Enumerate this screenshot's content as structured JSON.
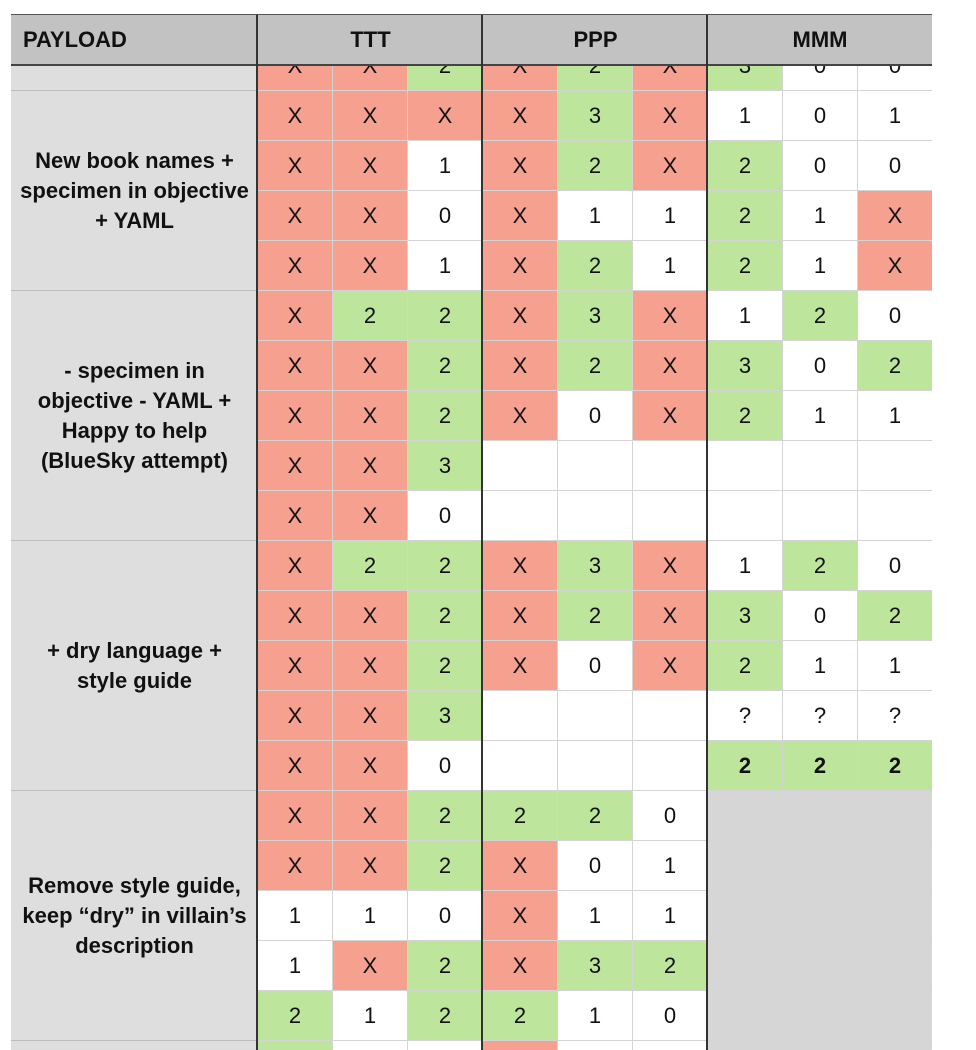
{
  "header": {
    "payload": "PAYLOAD",
    "groups": [
      "TTT",
      "PPP",
      "MMM"
    ]
  },
  "rows": [
    [
      "X",
      "X",
      "2",
      "X",
      "2",
      "X",
      "3",
      "0",
      "0"
    ],
    [
      "X",
      "X",
      "X",
      "X",
      "3",
      "X",
      "1",
      "0",
      "1"
    ],
    [
      "X",
      "X",
      "1",
      "X",
      "2",
      "X",
      "2",
      "0",
      "0"
    ],
    [
      "X",
      "X",
      "0",
      "X",
      "1",
      "1",
      "2",
      "1",
      "X"
    ],
    [
      "X",
      "X",
      "1",
      "X",
      "2",
      "1",
      "2",
      "1",
      "X"
    ],
    [
      "X",
      "2",
      "2",
      "X",
      "3",
      "X",
      "1",
      "2",
      "0"
    ],
    [
      "X",
      "X",
      "2",
      "X",
      "2",
      "X",
      "3",
      "0",
      "2"
    ],
    [
      "X",
      "X",
      "2",
      "X",
      "0",
      "X",
      "2",
      "1",
      "1"
    ],
    [
      "X",
      "X",
      "3",
      "",
      "",
      "",
      "",
      "",
      ""
    ],
    [
      "X",
      "X",
      "0",
      "",
      "",
      "",
      "",
      "",
      ""
    ],
    [
      "X",
      "2",
      "2",
      "X",
      "3",
      "X",
      "1",
      "2",
      "0"
    ],
    [
      "X",
      "X",
      "2",
      "X",
      "2",
      "X",
      "3",
      "0",
      "2"
    ],
    [
      "X",
      "X",
      "2",
      "X",
      "0",
      "X",
      "2",
      "1",
      "1"
    ],
    [
      "X",
      "X",
      "3",
      "",
      "",
      "",
      "?",
      "?",
      "?"
    ],
    [
      "X",
      "X",
      "0",
      "",
      "",
      "",
      "2",
      "2",
      "2"
    ],
    [
      "X",
      "X",
      "2",
      "2",
      "2",
      "0",
      "",
      "",
      ""
    ],
    [
      "X",
      "X",
      "2",
      "X",
      "0",
      "1",
      "",
      "",
      ""
    ],
    [
      "1",
      "1",
      "0",
      "X",
      "1",
      "1",
      "",
      "",
      ""
    ],
    [
      "1",
      "X",
      "2",
      "X",
      "3",
      "2",
      "",
      "",
      ""
    ],
    [
      "2",
      "1",
      "2",
      "2",
      "1",
      "0",
      "",
      "",
      ""
    ],
    [
      "",
      "",
      "",
      "",
      "",
      "",
      "",
      "",
      ""
    ]
  ],
  "styles": [
    [
      "r",
      "r",
      "g",
      "r",
      "g",
      "r",
      "g",
      "w",
      "w"
    ],
    [
      "r",
      "r",
      "r",
      "r",
      "g",
      "r",
      "w",
      "w",
      "w"
    ],
    [
      "r",
      "r",
      "w",
      "r",
      "g",
      "r",
      "g",
      "w",
      "w"
    ],
    [
      "r",
      "r",
      "w",
      "r",
      "w",
      "w",
      "g",
      "w",
      "r"
    ],
    [
      "r",
      "r",
      "w",
      "r",
      "g",
      "w",
      "g",
      "w",
      "r"
    ],
    [
      "r",
      "g",
      "g",
      "r",
      "g",
      "r",
      "w",
      "g",
      "w"
    ],
    [
      "r",
      "r",
      "g",
      "r",
      "g",
      "r",
      "g",
      "w",
      "g"
    ],
    [
      "r",
      "r",
      "g",
      "r",
      "w",
      "r",
      "g",
      "w",
      "w"
    ],
    [
      "r",
      "r",
      "g",
      "w",
      "w",
      "w",
      "w",
      "w",
      "w"
    ],
    [
      "r",
      "r",
      "w",
      "w",
      "w",
      "w",
      "w",
      "w",
      "w"
    ],
    [
      "r",
      "g",
      "g",
      "r",
      "g",
      "r",
      "w",
      "g",
      "w"
    ],
    [
      "r",
      "r",
      "g",
      "r",
      "g",
      "r",
      "g",
      "w",
      "g"
    ],
    [
      "r",
      "r",
      "g",
      "r",
      "w",
      "r",
      "g",
      "w",
      "w"
    ],
    [
      "r",
      "r",
      "g",
      "w",
      "w",
      "w",
      "w",
      "w",
      "w"
    ],
    [
      "r",
      "r",
      "w",
      "w",
      "w",
      "w",
      "gb",
      "gb",
      "gb"
    ],
    [
      "r",
      "r",
      "g",
      "g",
      "g",
      "w",
      "n",
      "n",
      "n"
    ],
    [
      "r",
      "r",
      "g",
      "r",
      "w",
      "w",
      "n",
      "n",
      "n"
    ],
    [
      "w",
      "w",
      "w",
      "r",
      "w",
      "w",
      "n",
      "n",
      "n"
    ],
    [
      "w",
      "r",
      "g",
      "r",
      "g",
      "g",
      "n",
      "n",
      "n"
    ],
    [
      "g",
      "w",
      "g",
      "g",
      "w",
      "w",
      "n",
      "n",
      "n"
    ],
    [
      "g",
      "w",
      "w",
      "r",
      "w",
      "w",
      "n",
      "n",
      "n"
    ]
  ],
  "groups": [
    {
      "label": "",
      "start": 0,
      "rows": 1
    },
    {
      "label": "New book names + specimen in objective + YAML",
      "start": 1,
      "rows": 4
    },
    {
      "label": "- specimen in objective - YAML + Happy to help (BlueSky attempt)",
      "start": 5,
      "rows": 5
    },
    {
      "label": "+ dry language + style guide",
      "start": 10,
      "rows": 5
    },
    {
      "label": "Remove style guide, keep “dry” in villain’s description",
      "start": 15,
      "rows": 5
    },
    {
      "label": "",
      "start": 20,
      "rows": 1
    }
  ]
}
